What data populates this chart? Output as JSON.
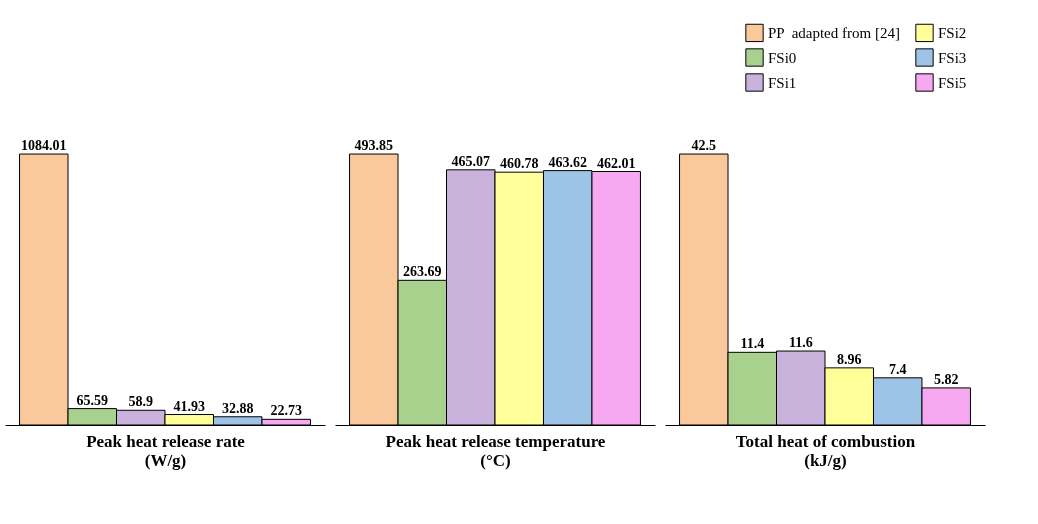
{
  "chart_data": [
    {
      "type": "bar",
      "xlabel": "Peak heat release rate (W/g)",
      "categories": [
        null,
        null,
        null,
        null,
        null,
        null
      ],
      "stacked": true,
      "data_labels": true,
      "series": [
        {
          "color": "#f9c89b",
          "values": [
            1084.01,
            null,
            null,
            null,
            null,
            null
          ]
        },
        {
          "color": "#a9d18e",
          "values": [
            null,
            65.59,
            null,
            null,
            null,
            null
          ]
        },
        {
          "color": "#c9b3dc",
          "values": [
            null,
            null,
            58.9,
            null,
            null,
            null
          ]
        },
        {
          "color": "#ffff99",
          "values": [
            null,
            null,
            null,
            41.93,
            null,
            null
          ]
        },
        {
          "color": "#9dc3e6",
          "values": [
            null,
            null,
            null,
            null,
            32.88,
            null
          ]
        },
        {
          "color": "#f6a8f0",
          "values": [
            null,
            null,
            null,
            null,
            null,
            22.73
          ]
        }
      ]
    },
    {
      "type": "bar",
      "xlabel": "Peak heat release temperature (°C)",
      "categories": [
        null,
        null,
        null,
        null,
        null,
        null
      ],
      "stacked": true,
      "data_labels": true,
      "series": [
        {
          "color": "#f9c89b",
          "values": [
            493.85,
            null,
            null,
            null,
            null,
            null
          ]
        },
        {
          "color": "#a9d18e",
          "values": [
            null,
            263.69,
            null,
            null,
            null,
            null
          ]
        },
        {
          "color": "#c9b3dc",
          "values": [
            null,
            null,
            465.07,
            null,
            null,
            null
          ]
        },
        {
          "color": "#ffff99",
          "values": [
            null,
            null,
            null,
            460.78,
            null,
            null
          ]
        },
        {
          "color": "#9dc3e6",
          "values": [
            null,
            null,
            null,
            null,
            463.62,
            null
          ]
        },
        {
          "color": "#f6a8f0",
          "values": [
            null,
            null,
            null,
            null,
            null,
            462.01
          ]
        }
      ]
    },
    {
      "type": "bar",
      "xlabel": "Total heat of combustion (kJ/g)",
      "categories": [
        null,
        null,
        null,
        null,
        null,
        null
      ],
      "stacked": true,
      "data_labels": true,
      "legend": "top right",
      "series": [
        {
          "name": "PP  adapted from [24]",
          "color": "#f9c89b",
          "values": [
            42.5,
            null,
            null,
            null,
            null,
            null
          ]
        },
        {
          "name": "FSi0",
          "color": "#a9d18e",
          "values": [
            null,
            11.4,
            null,
            null,
            null,
            null
          ]
        },
        {
          "name": "FSi1",
          "color": "#c9b3dc",
          "values": [
            null,
            null,
            11.6,
            null,
            null,
            null
          ]
        },
        {
          "name": "FSi2",
          "color": "#ffff99",
          "values": [
            null,
            null,
            null,
            8.96,
            null,
            null
          ]
        },
        {
          "name": "FSi3",
          "color": "#9dc3e6",
          "values": [
            null,
            null,
            null,
            null,
            7.4,
            null
          ]
        },
        {
          "name": "FSi5",
          "color": "#f6a8f0",
          "values": [
            null,
            null,
            null,
            null,
            null,
            5.82
          ]
        }
      ]
    }
  ]
}
